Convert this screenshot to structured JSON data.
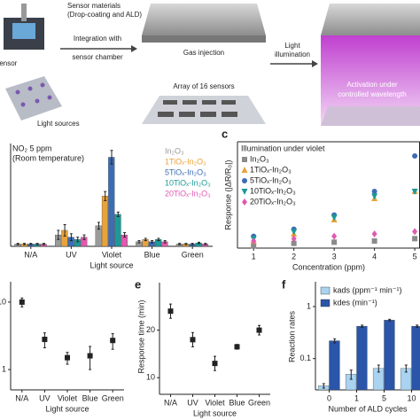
{
  "schematic": {
    "materials": "Sensor materials",
    "materials_sub": "(Drop-coating and ALD)",
    "sensor": "Sensor",
    "light_sources": "Light sources",
    "step1": "Integration with",
    "step1b": "sensor chamber",
    "gas": "Gas injection",
    "array": "Array of 16 sensors",
    "step2": "Light",
    "step2b": "illumination",
    "activation": "Activation under",
    "activation_b": "controlled wavelength"
  },
  "chart_data": [
    {
      "type": "bar",
      "annotations": [
        "NO₂ 5 ppm",
        "(Room temperature)"
      ],
      "xlabel": "Light source",
      "categories": [
        "N/A",
        "UV",
        "Violet",
        "Blue",
        "Green"
      ],
      "ylim": [
        0,
        45
      ],
      "legend": "upper right",
      "series": [
        {
          "name": "In₂O₃",
          "color": "#9a9a9a",
          "values": [
            1,
            5,
            9,
            2,
            1
          ],
          "errors": [
            0.3,
            2,
            1.5,
            0.5,
            0.3
          ]
        },
        {
          "name": "1TiOₓ-In₂O₃",
          "color": "#e8a33a",
          "values": [
            1,
            7,
            22,
            3,
            1
          ],
          "errors": [
            0.3,
            2.5,
            2,
            0.5,
            0.3
          ]
        },
        {
          "name": "5TiOₓ-In₂O₃",
          "color": "#3c6db4",
          "values": [
            1,
            4,
            39,
            2,
            1
          ],
          "errors": [
            0.3,
            1.5,
            3,
            0.5,
            0.3
          ]
        },
        {
          "name": "10TiOₓ-In₂O₃",
          "color": "#1c9a97",
          "values": [
            1,
            3,
            14,
            3,
            1.5
          ],
          "errors": [
            0.3,
            1,
            1,
            0.5,
            0.3
          ]
        },
        {
          "name": "20TiOₓ-In₂O₃",
          "color": "#e05ab0",
          "values": [
            1,
            4,
            5,
            2,
            1
          ],
          "errors": [
            0.3,
            1,
            1,
            0.5,
            0.3
          ]
        }
      ]
    },
    {
      "type": "scatter",
      "panel_label": "c",
      "title": "Illumination under violet",
      "x": [
        1,
        2,
        3,
        4,
        5
      ],
      "xlim": [
        0.6,
        5.13
      ],
      "xticks": [
        1,
        2,
        3,
        4,
        5
      ],
      "xlabel": "Concentration (ppm)",
      "ylabel": "Response (|ΔR/R₀|)",
      "ylim": [
        0,
        45
      ],
      "legend": "upper left",
      "series": [
        {
          "name": "In₂O₃",
          "color": "#8a8a8a",
          "marker": "square",
          "values": [
            1,
            2,
            2.5,
            3,
            4
          ]
        },
        {
          "name": "1TiOₓ-In₂O₃",
          "color": "#e8a33a",
          "marker": "triangle",
          "values": [
            3,
            6,
            12,
            21,
            24
          ]
        },
        {
          "name": "5TiOₓ-In₂O₃",
          "color": "#3c6db4",
          "marker": "circle",
          "values": [
            5,
            8,
            14,
            24,
            39
          ]
        },
        {
          "name": "10TiOₓ-In₂O₃",
          "color": "#1c9a97",
          "marker": "triangle-down",
          "values": [
            4,
            7,
            13,
            22,
            24
          ]
        },
        {
          "name": "20TiOₓ-In₂O₃",
          "color": "#e05ab0",
          "marker": "diamond",
          "values": [
            3,
            4,
            5,
            6,
            7
          ]
        }
      ]
    },
    {
      "type": "scatter",
      "categories": [
        "N/A",
        "UV",
        "Violet",
        "Blue",
        "Green"
      ],
      "xlabel": "Light source",
      "ylog": true,
      "ylim": [
        0.5,
        20
      ],
      "yticks": [
        1,
        10
      ],
      "color": "#222222",
      "values": [
        10,
        2.8,
        1.5,
        1.6,
        2.7
      ],
      "errors": [
        1.5,
        0.7,
        0.3,
        0.6,
        0.7
      ]
    },
    {
      "type": "scatter",
      "panel_label": "e",
      "categories": [
        "N/A",
        "UV",
        "Violet",
        "Blue",
        "Green"
      ],
      "xlabel": "Light source",
      "ylabel": "Response time (min)",
      "ylim": [
        6.5,
        30
      ],
      "yticks": [
        10,
        20
      ],
      "color": "#222222",
      "values": [
        24,
        18,
        13,
        16.5,
        20
      ],
      "errors": [
        1.5,
        1.5,
        1.5,
        0.5,
        1
      ]
    },
    {
      "type": "bar",
      "panel_label": "f",
      "categories": [
        "0",
        "1",
        "5",
        "10"
      ],
      "xlabel": "Number of ALD cycles",
      "ylabel": "Reaction rates",
      "ylog": true,
      "ylim": [
        0.025,
        3
      ],
      "yticks": [
        0.1,
        1
      ],
      "legend": "upper left",
      "series": [
        {
          "name": "kads (ppm⁻¹ min⁻¹)",
          "color": "#a9d3f0",
          "values": [
            0.03,
            0.05,
            0.065,
            0.065
          ],
          "errors": [
            0.003,
            0.01,
            0.01,
            0.01
          ]
        },
        {
          "name": "kdes (min⁻¹)",
          "color": "#2a55a8",
          "values": [
            0.22,
            0.42,
            0.55,
            0.42
          ],
          "errors": [
            0.02,
            0.02,
            0.02,
            0.02
          ]
        }
      ]
    }
  ]
}
